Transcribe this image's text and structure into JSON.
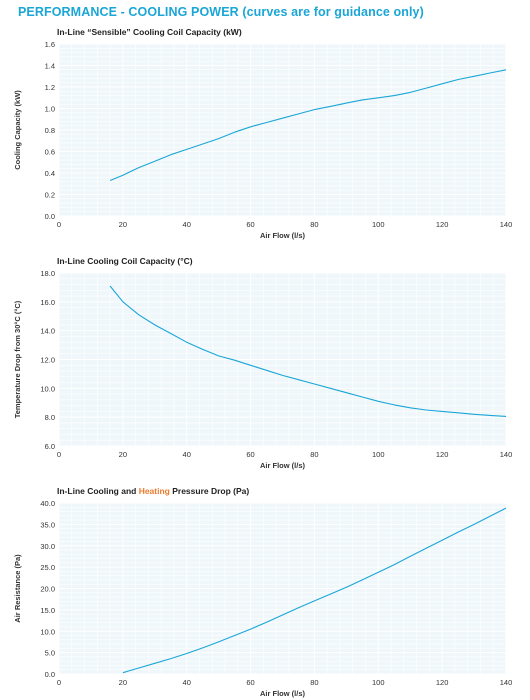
{
  "heading": "PERFORMANCE  -  COOLING POWER (curves are for guidance only)",
  "colors": {
    "accent": "#1aa6d6",
    "heating": "#ec7a2d",
    "plot_bg": "#eff7fb",
    "grid": "#ffffff"
  },
  "chart3_title": {
    "part1": "In-Line Cooling and ",
    "heating": "Heating",
    "part2": " Pressure Drop (Pa)"
  },
  "chart_data": [
    {
      "type": "line",
      "title": "In-Line “Sensible” Cooling Coil Capacity (kW)",
      "xlabel": "Air Flow (l/s)",
      "ylabel": "Cooling Capacity (kW)",
      "xlim": [
        0,
        140
      ],
      "ylim": [
        0,
        1.6
      ],
      "xticks": [
        "0",
        "20",
        "40",
        "60",
        "80",
        "100",
        "120",
        "140"
      ],
      "yticks": [
        "0.0",
        "0.2",
        "0.4",
        "0.6",
        "0.8",
        "1.0",
        "1.2",
        "1.4",
        "1.6"
      ],
      "grid": true,
      "series": [
        {
          "x": [
            16,
            20,
            25,
            30,
            35,
            40,
            45,
            50,
            55,
            60,
            65,
            70,
            75,
            80,
            85,
            90,
            95,
            100,
            105,
            110,
            115,
            120,
            125,
            130,
            135,
            140
          ],
          "y": [
            0.33,
            0.38,
            0.45,
            0.51,
            0.57,
            0.62,
            0.67,
            0.72,
            0.78,
            0.83,
            0.87,
            0.91,
            0.95,
            0.99,
            1.02,
            1.05,
            1.08,
            1.1,
            1.12,
            1.15,
            1.19,
            1.23,
            1.27,
            1.3,
            1.33,
            1.36
          ]
        }
      ]
    },
    {
      "type": "line",
      "title": "In-Line Cooling Coil Capacity (°C)",
      "xlabel": "Air Flow (l/s)",
      "ylabel": "Temperature Drop from 30°C (°C)",
      "xlim": [
        0,
        140
      ],
      "ylim": [
        6,
        18
      ],
      "xticks": [
        "0",
        "20",
        "40",
        "60",
        "80",
        "100",
        "120",
        "140"
      ],
      "yticks": [
        "6.0",
        "8.0",
        "10.0",
        "12.0",
        "14.0",
        "16.0",
        "18.0"
      ],
      "grid": true,
      "series": [
        {
          "x": [
            16,
            20,
            25,
            30,
            35,
            40,
            45,
            50,
            55,
            60,
            65,
            70,
            75,
            80,
            85,
            90,
            95,
            100,
            105,
            110,
            115,
            120,
            125,
            130,
            135,
            140
          ],
          "y": [
            17.1,
            16.0,
            15.1,
            14.4,
            13.8,
            13.2,
            12.7,
            12.25,
            11.95,
            11.6,
            11.25,
            10.9,
            10.6,
            10.3,
            10.0,
            9.7,
            9.4,
            9.1,
            8.85,
            8.65,
            8.5,
            8.4,
            8.3,
            8.2,
            8.12,
            8.05
          ]
        }
      ]
    },
    {
      "type": "line",
      "title": "In-Line Cooling and Heating Pressure Drop (Pa)",
      "xlabel": "Air Flow (l/s)",
      "ylabel": "Air Resistance (Pa)",
      "xlim": [
        0,
        140
      ],
      "ylim": [
        0,
        40
      ],
      "xticks": [
        "0",
        "20",
        "40",
        "60",
        "80",
        "100",
        "120",
        "140"
      ],
      "yticks": [
        "0.0",
        "5.0",
        "10.0",
        "15.0",
        "20.0",
        "25.0",
        "30.0",
        "35.0",
        "40.0"
      ],
      "grid": true,
      "series": [
        {
          "x": [
            20,
            25,
            30,
            35,
            40,
            45,
            50,
            55,
            60,
            65,
            70,
            75,
            80,
            85,
            90,
            95,
            100,
            105,
            110,
            115,
            120,
            125,
            130,
            135,
            140
          ],
          "y": [
            0.3,
            1.4,
            2.5,
            3.6,
            4.8,
            6.1,
            7.5,
            9.0,
            10.5,
            12.1,
            13.8,
            15.5,
            17.1,
            18.7,
            20.3,
            22.0,
            23.8,
            25.6,
            27.5,
            29.4,
            31.3,
            33.2,
            35.0,
            36.9,
            38.8
          ]
        }
      ]
    }
  ]
}
